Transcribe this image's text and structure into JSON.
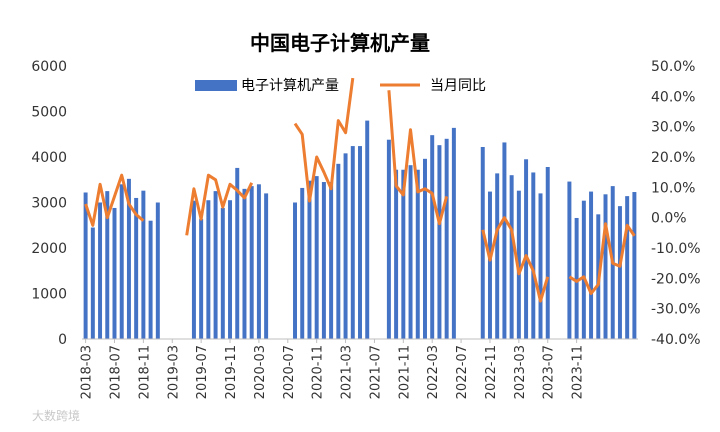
{
  "chart_data": {
    "type": "bar",
    "title": "中国电子计算机产量",
    "legend": {
      "position": "top",
      "entries": [
        "电子计算机产量",
        "当月同比"
      ]
    },
    "colors": {
      "bar": "#4472C4",
      "line": "#ED7D31",
      "axis": "#bfbfbf",
      "text": "#333333"
    },
    "y_left": {
      "min": 0,
      "max": 6000,
      "step": 1000,
      "ticks": [
        "0",
        "1000",
        "2000",
        "3000",
        "4000",
        "5000",
        "6000"
      ]
    },
    "y_right": {
      "min": -40,
      "max": 50,
      "step": 10,
      "ticks": [
        "-40.0%",
        "-30.0%",
        "-20.0%",
        "-10.0%",
        "0.0%",
        "10.0%",
        "20.0%",
        "30.0%",
        "40.0%",
        "50.0%"
      ]
    },
    "x_tick_labels": [
      "2018-03",
      "2018-07",
      "2018-11",
      "2019-03",
      "2019-07",
      "2019-11",
      "2020-03",
      "2020-07",
      "2020-11",
      "2021-03",
      "2021-07",
      "2021-11",
      "2022-03",
      "2022-07",
      "2022-11",
      "2023-03",
      "2023-07",
      "2023-11"
    ],
    "series": [
      {
        "name": "电子计算机产量",
        "axis": "left",
        "kind": "bar",
        "values": [
          3220,
          2450,
          3000,
          3250,
          2880,
          3400,
          3520,
          3100,
          3260,
          2600,
          3000,
          null,
          null,
          null,
          null,
          3040,
          2640,
          3050,
          3250,
          2880,
          3050,
          3760,
          3300,
          3360,
          3400,
          3200,
          null,
          null,
          null,
          3000,
          3320,
          3480,
          3580,
          3450,
          3450,
          3850,
          4080,
          4240,
          4240,
          4800,
          null,
          null,
          4380,
          3720,
          3720,
          3820,
          3720,
          3960,
          4480,
          4260,
          4400,
          4640,
          null,
          null,
          null,
          4220,
          3240,
          3640,
          4320,
          3600,
          3260,
          3950,
          3660,
          3200,
          3780,
          null,
          null,
          3460,
          2660,
          3040,
          3240,
          2740,
          3180,
          3360,
          2920,
          3140,
          3230
        ]
      },
      {
        "name": "当月同比",
        "axis": "right",
        "kind": "line",
        "values": [
          4.5,
          -2.5,
          11.0,
          0.0,
          7.0,
          14.0,
          4.5,
          1.0,
          -1.0,
          null,
          null,
          null,
          null,
          null,
          -5.8,
          9.5,
          -0.5,
          14.0,
          12.5,
          3.5,
          11.0,
          9.0,
          6.5,
          11.5,
          null,
          null,
          null,
          null,
          null,
          31.0,
          27.5,
          5.5,
          20.0,
          15.0,
          9.5,
          32.0,
          28.0,
          46.0,
          null,
          null,
          null,
          null,
          42.0,
          10.5,
          7.5,
          29.0,
          8.5,
          9.5,
          8.0,
          -2.0,
          7.0,
          null,
          null,
          null,
          null,
          -4.0,
          -14.0,
          -4.0,
          0.0,
          -4.0,
          -18.5,
          -12.5,
          -17.5,
          -27.5,
          -19.5,
          null,
          null,
          -19.5,
          -21.0,
          -19.5,
          -25.0,
          -22.0,
          -2.0,
          -15.0,
          -16.0,
          -2.5,
          -6.0
        ]
      }
    ]
  },
  "watermark": "大数跨境"
}
